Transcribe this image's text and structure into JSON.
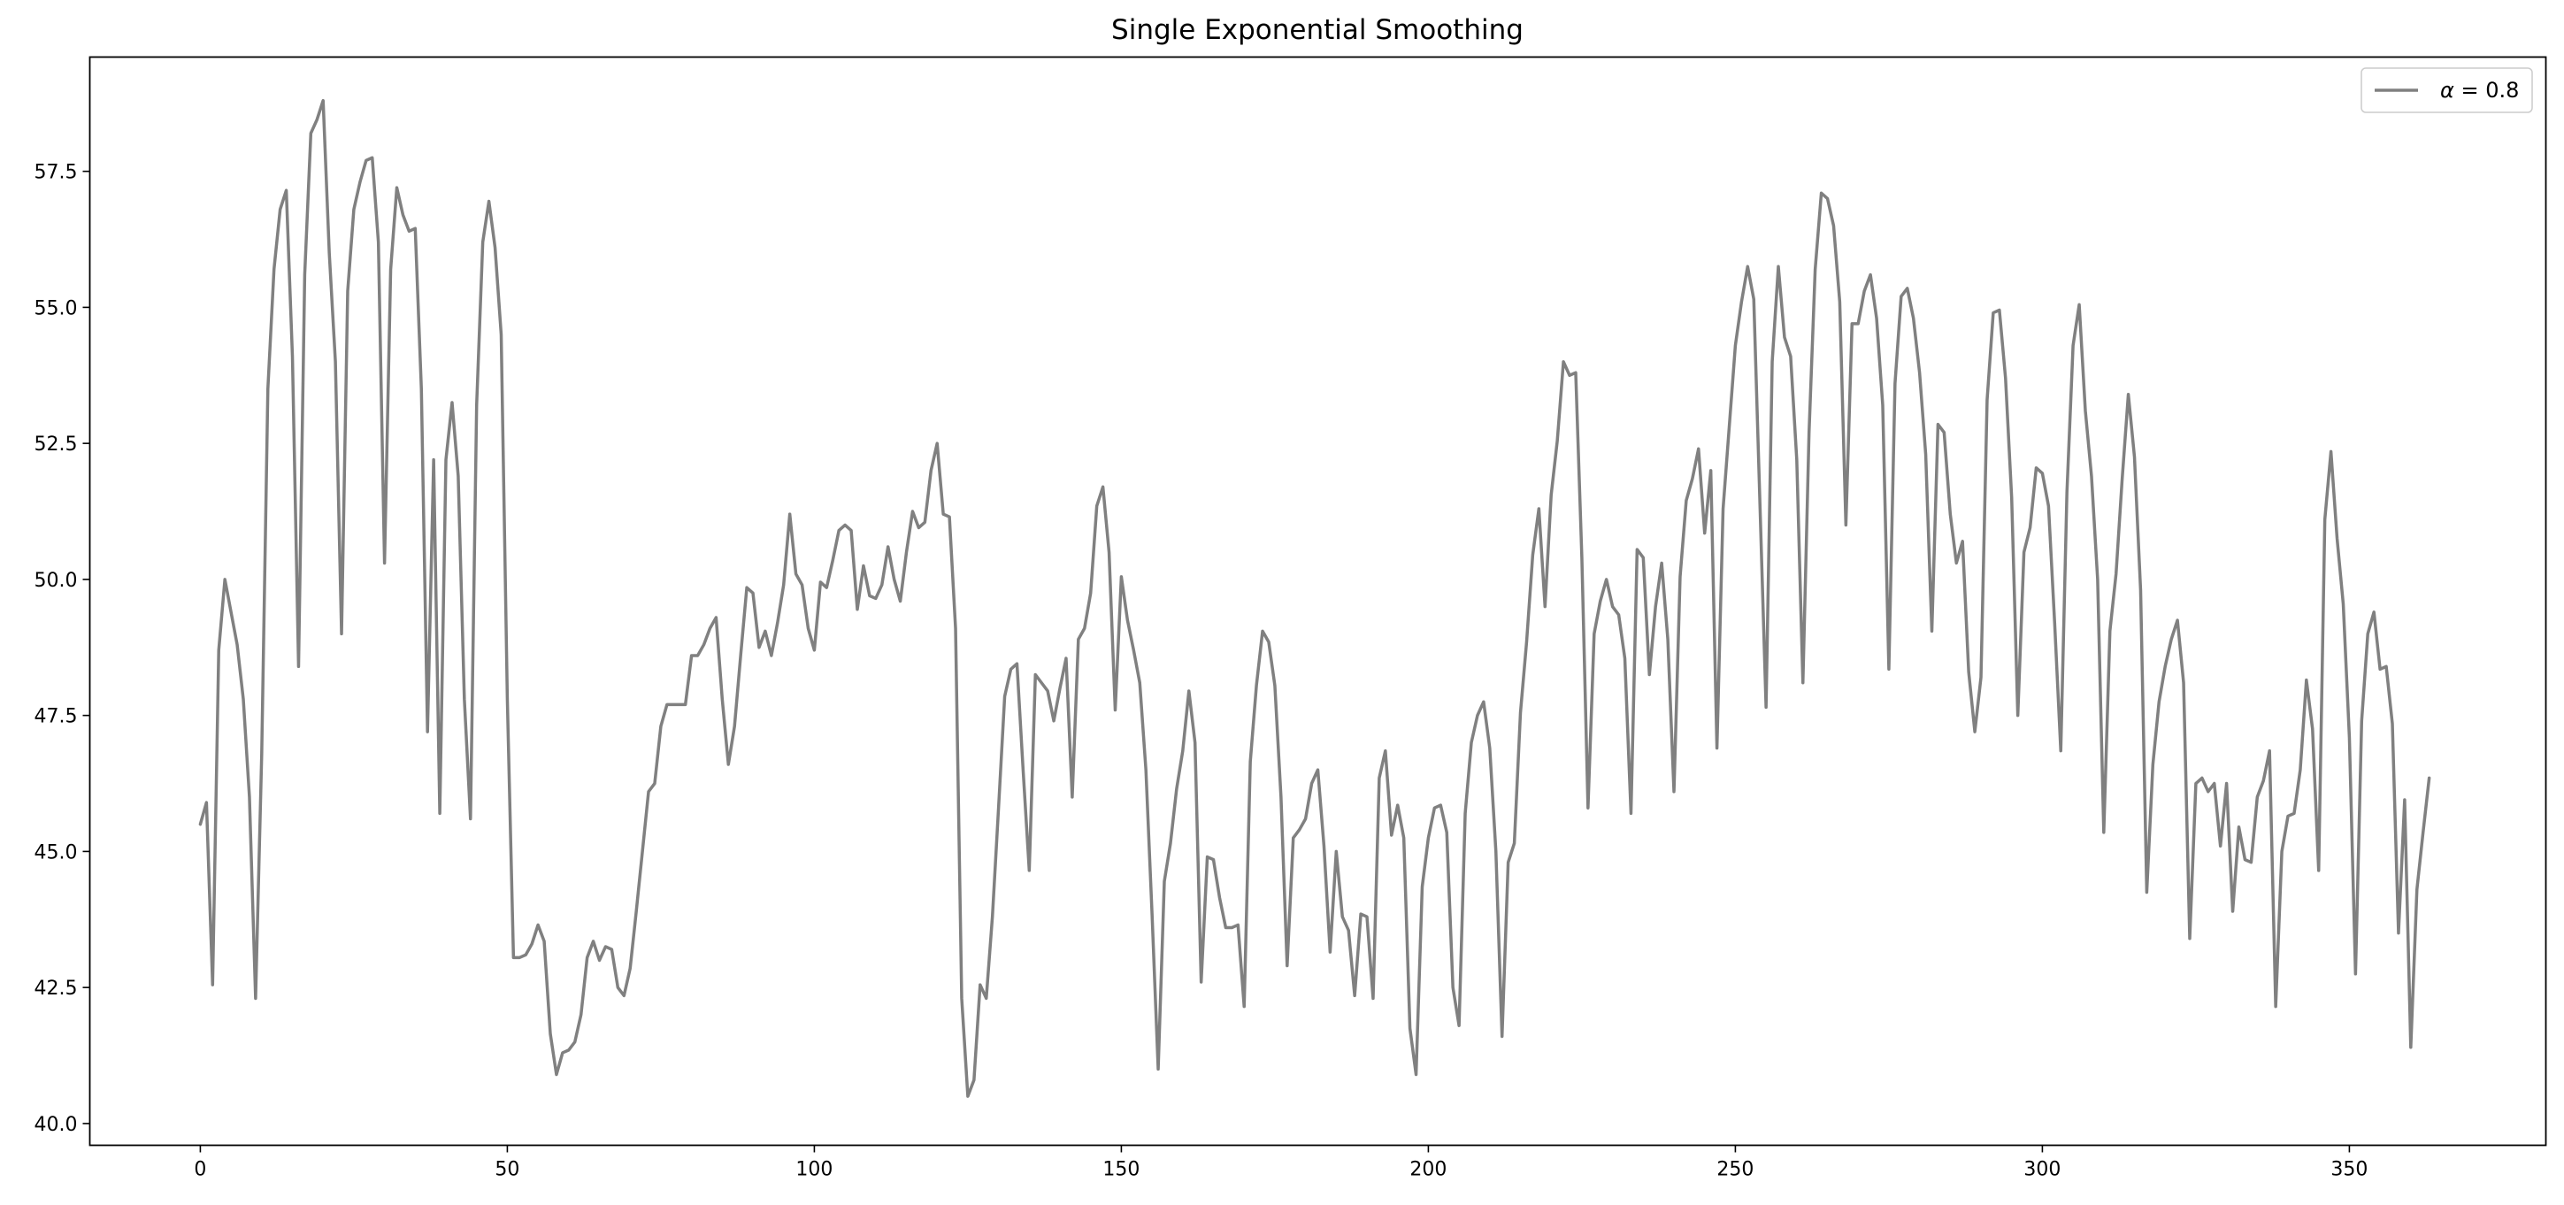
{
  "chart_data": {
    "type": "line",
    "title": "Single Exponential Smoothing",
    "xlabel": "",
    "ylabel": "",
    "xlim": [
      -18,
      382
    ],
    "ylim": [
      39.6,
      59.6
    ],
    "xticks": [
      0,
      50,
      100,
      150,
      200,
      250,
      300,
      350
    ],
    "yticks": [
      40.0,
      42.5,
      45.0,
      47.5,
      50.0,
      52.5,
      55.0,
      57.5
    ],
    "ytick_labels": [
      "40.0",
      "42.5",
      "45.0",
      "47.5",
      "50.0",
      "52.5",
      "55.0",
      "57.5"
    ],
    "legend_position": "top-right",
    "grid": false,
    "colors": {
      "series": "#808080",
      "axes": "#000000",
      "background": "#ffffff"
    },
    "series": [
      {
        "name": "$\\alpha = 0.8$",
        "legend_label": "α = 0.8",
        "x": [
          0,
          1,
          2,
          3,
          4,
          5,
          6,
          7,
          8,
          9,
          10,
          11,
          12,
          13,
          14,
          15,
          16,
          17,
          18,
          19,
          20,
          21,
          22,
          23,
          24,
          25,
          26,
          27,
          28,
          29,
          30,
          31,
          32,
          33,
          34,
          35,
          36,
          37,
          38,
          39,
          40,
          41,
          42,
          43,
          44,
          45,
          46,
          47,
          48,
          49,
          50,
          51,
          52,
          53,
          54,
          55,
          56,
          57,
          58,
          59,
          60,
          61,
          62,
          63,
          64,
          65,
          66,
          67,
          68,
          69,
          70,
          71,
          72,
          73,
          74,
          75,
          76,
          77,
          78,
          79,
          80,
          81,
          82,
          83,
          84,
          85,
          86,
          87,
          88,
          89,
          90,
          91,
          92,
          93,
          94,
          95,
          96,
          97,
          98,
          99,
          100,
          101,
          102,
          103,
          104,
          105,
          106,
          107,
          108,
          109,
          110,
          111,
          112,
          113,
          114,
          115,
          116,
          117,
          118,
          119,
          120,
          121,
          122,
          123,
          124,
          125,
          126,
          127,
          128,
          129,
          130,
          131,
          132,
          133,
          134,
          135,
          136,
          137,
          138,
          139,
          140,
          141,
          142,
          143,
          144,
          145,
          146,
          147,
          148,
          149,
          150,
          151,
          152,
          153,
          154,
          155,
          156,
          157,
          158,
          159,
          160,
          161,
          162,
          163,
          164,
          165,
          166,
          167,
          168,
          169,
          170,
          171,
          172,
          173,
          174,
          175,
          176,
          177,
          178,
          179,
          180,
          181,
          182,
          183,
          184,
          185,
          186,
          187,
          188,
          189,
          190,
          191,
          192,
          193,
          194,
          195,
          196,
          197,
          198,
          199,
          200,
          201,
          202,
          203,
          204,
          205,
          206,
          207,
          208,
          209,
          210,
          211,
          212,
          213,
          214,
          215,
          216,
          217,
          218,
          219,
          220,
          221,
          222,
          223,
          224,
          225,
          226,
          227,
          228,
          229,
          230,
          231,
          232,
          233,
          234,
          235,
          236,
          237,
          238,
          239,
          240,
          241,
          242,
          243,
          244,
          245,
          246,
          247,
          248,
          249,
          250,
          251,
          252,
          253,
          254,
          255,
          256,
          257,
          258,
          259,
          260,
          261,
          262,
          263,
          264,
          265,
          266,
          267,
          268,
          269,
          270,
          271,
          272,
          273,
          274,
          275,
          276,
          277,
          278,
          279,
          280,
          281,
          282,
          283,
          284,
          285,
          286,
          287,
          288,
          289,
          290,
          291,
          292,
          293,
          294,
          295,
          296,
          297,
          298,
          299,
          300,
          301,
          302,
          303,
          304,
          305,
          306,
          307,
          308,
          309,
          310,
          311,
          312,
          313,
          314,
          315,
          316,
          317,
          318,
          319,
          320,
          321,
          322,
          323,
          324,
          325,
          326,
          327,
          328,
          329,
          330,
          331,
          332,
          333,
          334,
          335,
          336,
          337,
          338,
          339,
          340,
          341,
          342,
          343,
          344,
          345,
          346,
          347,
          348,
          349,
          350,
          351,
          352,
          353,
          354,
          355,
          356,
          357,
          358,
          359,
          360,
          361,
          362,
          363
        ],
        "values": [
          45.5,
          45.9,
          42.55,
          48.7,
          50.0,
          49.4,
          48.8,
          47.8,
          46.0,
          42.3,
          46.8,
          53.5,
          55.7,
          56.8,
          57.15,
          54.1,
          48.4,
          55.6,
          58.2,
          58.45,
          58.8,
          56.0,
          54.0,
          49.0,
          55.3,
          56.8,
          57.3,
          57.7,
          57.75,
          56.2,
          50.3,
          55.7,
          57.2,
          56.7,
          56.4,
          56.45,
          53.5,
          47.2,
          52.2,
          45.7,
          52.2,
          53.25,
          51.9,
          47.8,
          45.6,
          53.2,
          56.2,
          56.95,
          56.1,
          54.5,
          47.8,
          43.05,
          43.05,
          43.1,
          43.3,
          43.65,
          43.35,
          41.65,
          40.9,
          41.3,
          41.35,
          41.5,
          42.0,
          43.05,
          43.35,
          43.0,
          43.25,
          43.2,
          42.5,
          42.35,
          42.85,
          43.9,
          45.0,
          46.1,
          46.25,
          47.3,
          47.7,
          47.7,
          47.7,
          47.7,
          48.6,
          48.6,
          48.8,
          49.1,
          49.3,
          47.8,
          46.6,
          47.3,
          48.6,
          49.85,
          49.75,
          48.75,
          49.05,
          48.6,
          49.2,
          49.9,
          51.2,
          50.1,
          49.9,
          49.1,
          48.7,
          49.95,
          49.85,
          50.35,
          50.9,
          51.0,
          50.9,
          49.45,
          50.25,
          49.7,
          49.65,
          49.9,
          50.6,
          50.0,
          49.6,
          50.5,
          51.25,
          50.95,
          51.05,
          52.0,
          52.5,
          51.2,
          51.15,
          49.1,
          42.3,
          40.5,
          40.8,
          42.55,
          42.3,
          43.8,
          45.8,
          47.85,
          48.35,
          48.45,
          46.5,
          44.65,
          48.25,
          48.1,
          47.95,
          47.4,
          48.0,
          48.55,
          46.0,
          48.9,
          49.1,
          49.75,
          51.35,
          51.7,
          50.5,
          47.6,
          50.05,
          49.25,
          48.7,
          48.1,
          46.5,
          43.85,
          41.0,
          44.45,
          45.15,
          46.15,
          46.85,
          47.95,
          47.0,
          42.6,
          44.9,
          44.85,
          44.15,
          43.6,
          43.6,
          43.65,
          42.15,
          46.65,
          48.05,
          49.05,
          48.85,
          48.05,
          46.0,
          42.9,
          45.25,
          45.4,
          45.6,
          46.25,
          46.5,
          45.1,
          43.15,
          45.0,
          43.8,
          43.55,
          42.35,
          43.85,
          43.8,
          42.3,
          46.35,
          46.85,
          45.3,
          45.85,
          45.25,
          41.75,
          40.9,
          44.35,
          45.25,
          45.8,
          45.85,
          45.35,
          42.5,
          41.8,
          45.7,
          47.0,
          47.5,
          47.75,
          46.9,
          45.0,
          41.6,
          44.8,
          45.15,
          47.55,
          48.85,
          50.45,
          51.3,
          49.5,
          51.55,
          52.55,
          54.0,
          53.75,
          53.8,
          50.4,
          45.8,
          49.0,
          49.6,
          50.0,
          49.5,
          49.35,
          48.55,
          45.7,
          50.55,
          50.4,
          48.25,
          49.5,
          50.3,
          48.9,
          46.1,
          50.05,
          51.45,
          51.85,
          52.4,
          50.85,
          52.0,
          46.9,
          51.3,
          52.8,
          54.3,
          55.1,
          55.75,
          55.15,
          51.4,
          47.65,
          54.0,
          55.75,
          54.45,
          54.1,
          52.2,
          48.1,
          52.7,
          55.7,
          57.1,
          57.0,
          56.5,
          55.1,
          51.0,
          54.7,
          54.7,
          55.3,
          55.6,
          54.8,
          53.2,
          48.35,
          53.6,
          55.2,
          55.35,
          54.8,
          53.8,
          52.3,
          49.05,
          52.85,
          52.7,
          51.2,
          50.3,
          50.7,
          48.3,
          47.2,
          48.2,
          53.3,
          54.9,
          54.95,
          53.7,
          51.5,
          47.5,
          50.5,
          50.95,
          52.05,
          51.95,
          51.35,
          49.2,
          46.85,
          51.6,
          54.3,
          55.05,
          53.1,
          51.9,
          50.0,
          45.35,
          49.05,
          50.1,
          51.85,
          53.4,
          52.25,
          49.8,
          44.25,
          46.6,
          47.75,
          48.4,
          48.9,
          49.25,
          48.1,
          43.4,
          46.25,
          46.35,
          46.1,
          46.25,
          45.1,
          46.25,
          43.9,
          45.45,
          44.85,
          44.8,
          46.0,
          46.3,
          46.85,
          42.15,
          45.0,
          45.65,
          45.7,
          46.5,
          48.15,
          47.25,
          44.65,
          51.1,
          52.35,
          50.75,
          49.55,
          47.1,
          42.75,
          47.4,
          49.0,
          49.4,
          48.35,
          48.4,
          47.35,
          43.5,
          45.95,
          41.4,
          44.3,
          45.35,
          46.35
        ]
      }
    ]
  }
}
